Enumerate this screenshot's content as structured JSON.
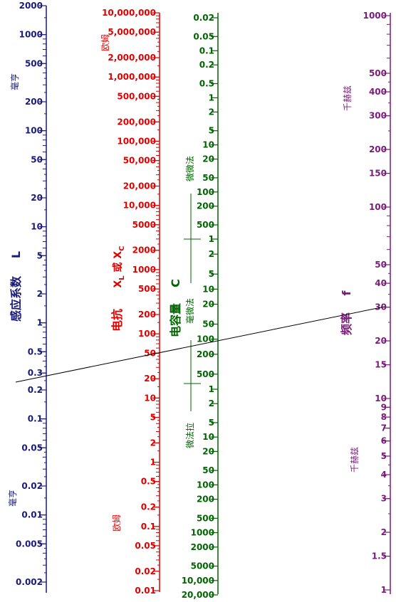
{
  "colors": {
    "L": "#1a1a7a",
    "X": "#e00000",
    "C": "#006400",
    "F": "#7a1a7a",
    "line": "#000000"
  },
  "axis_L": {
    "ticks": [
      "2000",
      "1000",
      "500",
      "200",
      "100",
      "50",
      "20",
      "10",
      "5",
      "2",
      "1",
      "0.5",
      "0.3",
      "0.2",
      "0.1",
      "0.05",
      "0.02",
      "0.01",
      "0.005",
      "0.002"
    ],
    "unit_top": "毫亨",
    "unit_bottom": "毫亨",
    "title": "感应系数",
    "symbol": "L"
  },
  "axis_X": {
    "ticks": [
      "10,000,000",
      "5,000,000",
      "2,000,000",
      "1,000,000",
      "500,000",
      "200,000",
      "100,000",
      "50,000",
      "20,000",
      "10,000",
      "5000",
      "2000",
      "1000",
      "500",
      "200",
      "100",
      "50",
      "20",
      "10",
      "5",
      "2",
      "1",
      "0.5",
      "0.2",
      "0.1",
      "0.05",
      "0.02",
      "0.01"
    ],
    "unit_top": "欧姆",
    "unit_bottom": "欧姆",
    "title": "电抗",
    "symbol_1": "X",
    "sub_1": "L",
    "symbol_or": "或",
    "symbol_2": "X",
    "sub_2": "C"
  },
  "axis_C": {
    "ticks_1": [
      "0.02",
      "0.05",
      "0.1",
      "0.2",
      "0.5",
      "1",
      "2",
      "5",
      "10",
      "20",
      "50",
      "100",
      "200",
      "500",
      "1"
    ],
    "ticks_2": [
      "2",
      "5",
      "10",
      "20",
      "50",
      "100",
      "200",
      "500",
      "1"
    ],
    "ticks_3": [
      "2",
      "5",
      "10",
      "20",
      "50",
      "100",
      "200",
      "500",
      "1000",
      "2000",
      "5000",
      "10,000",
      "20,000"
    ],
    "unit_1": "微微法",
    "unit_2": "毫微法",
    "unit_3": "微法拉",
    "title": "电容量",
    "symbol": "C"
  },
  "axis_F": {
    "ticks": [
      "1000",
      "500",
      "400",
      "300",
      "200",
      "150",
      "100",
      "50",
      "40",
      "30",
      "20",
      "15",
      "10",
      "9",
      "8",
      "7",
      "6",
      "5",
      "4",
      "3",
      "2",
      "1.5",
      "1"
    ],
    "unit_top": "千赫兹",
    "unit_bottom": "千赫兹",
    "title": "频率",
    "symbol": "f"
  }
}
